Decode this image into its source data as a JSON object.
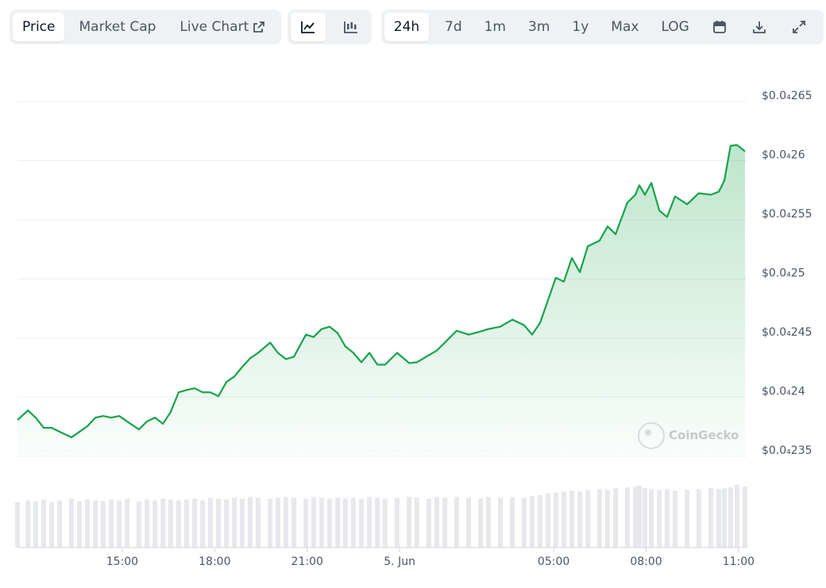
{
  "toolbar": {
    "views": [
      "Price",
      "Market Cap",
      "Live Chart"
    ],
    "ranges": [
      "24h",
      "7d",
      "1m",
      "3m",
      "1y",
      "Max",
      "LOG"
    ]
  },
  "chart_data": {
    "type": "line",
    "x": [
      11.6,
      11.94,
      12.19,
      12.45,
      12.71,
      12.97,
      13.35,
      13.61,
      13.87,
      14.13,
      14.38,
      14.64,
      14.9,
      15.16,
      15.54,
      15.8,
      16.06,
      16.32,
      16.57,
      16.83,
      17.09,
      17.35,
      17.61,
      17.86,
      18.12,
      18.38,
      18.64,
      18.89,
      19.15,
      19.41,
      19.8,
      20.05,
      20.31,
      20.57,
      20.96,
      21.21,
      21.47,
      21.73,
      21.99,
      22.24,
      22.5,
      22.76,
      23.02,
      23.28,
      23.53,
      23.92,
      24.31,
      24.56,
      24.95,
      25.21,
      25.47,
      25.85,
      26.24,
      26.63,
      26.88,
      27.27,
      27.66,
      28.04,
      28.3,
      28.56,
      28.82,
      29.07,
      29.33,
      29.59,
      29.85,
      30.11,
      30.49,
      30.75,
      31.01,
      31.39,
      31.65,
      31.78,
      31.96,
      32.17,
      32.43,
      32.68,
      32.94,
      33.33,
      33.71,
      34.1,
      34.36,
      34.54,
      34.74,
      34.95,
      35.21
    ],
    "series": [
      {
        "color": "#16a34a",
        "values": [
          2.3807e-05,
          2.3888e-05,
          2.3827e-05,
          2.3741e-05,
          2.3741e-05,
          2.3707e-05,
          2.366e-05,
          2.3707e-05,
          2.3754e-05,
          2.3827e-05,
          2.3841e-05,
          2.3827e-05,
          2.3841e-05,
          2.3794e-05,
          2.3727e-05,
          2.3794e-05,
          2.3827e-05,
          2.3774e-05,
          2.3874e-05,
          2.4041e-05,
          2.4061e-05,
          2.4075e-05,
          2.4041e-05,
          2.4041e-05,
          2.4008e-05,
          2.4128e-05,
          2.4175e-05,
          2.4255e-05,
          2.4329e-05,
          2.4375e-05,
          2.4462e-05,
          2.4375e-05,
          2.4322e-05,
          2.4342e-05,
          2.4529e-05,
          2.4509e-05,
          2.4576e-05,
          2.4596e-05,
          2.4542e-05,
          2.4429e-05,
          2.4375e-05,
          2.4295e-05,
          2.4375e-05,
          2.4275e-05,
          2.4275e-05,
          2.4375e-05,
          2.4288e-05,
          2.4295e-05,
          2.4355e-05,
          2.4395e-05,
          2.4462e-05,
          2.4562e-05,
          2.4529e-05,
          2.4556e-05,
          2.4576e-05,
          2.4596e-05,
          2.4656e-05,
          2.4609e-05,
          2.4529e-05,
          2.4629e-05,
          2.4823e-05,
          2.501e-05,
          2.4977e-05,
          2.5177e-05,
          2.5057e-05,
          2.5277e-05,
          2.5324e-05,
          2.5444e-05,
          2.5378e-05,
          2.5645e-05,
          2.5712e-05,
          2.5792e-05,
          2.5712e-05,
          2.5812e-05,
          2.5578e-05,
          2.5524e-05,
          2.5698e-05,
          2.5631e-05,
          2.5725e-05,
          2.5712e-05,
          2.5738e-05,
          2.5832e-05,
          2.6126e-05,
          2.6133e-05,
          2.6079e-05
        ]
      }
    ],
    "volume": {
      "color": "#e6e8ec",
      "values": [
        52,
        54,
        53,
        55,
        52,
        54,
        56,
        53,
        55,
        54,
        53,
        55,
        54,
        56,
        53,
        55,
        54,
        56,
        55,
        54,
        55,
        56,
        54,
        57,
        56,
        55,
        57,
        56,
        58,
        57,
        56,
        57,
        58,
        57,
        56,
        58,
        57,
        56,
        57,
        56,
        57,
        56,
        58,
        57,
        56,
        57,
        58,
        57,
        56,
        58,
        57,
        58,
        57,
        56,
        58,
        57,
        58,
        57,
        59,
        60,
        62,
        63,
        64,
        65,
        64,
        66,
        67,
        66,
        68,
        69,
        70,
        71,
        68,
        67,
        66,
        67,
        65,
        66,
        67,
        68,
        67,
        68,
        69,
        72,
        70
      ]
    },
    "vlim": [
      0,
      100
    ],
    "xlim": [
      11.6,
      35.26
    ],
    "xticks": [
      {
        "value": 15,
        "label": "15:00"
      },
      {
        "value": 18,
        "label": "18:00"
      },
      {
        "value": 21,
        "label": "21:00"
      },
      {
        "value": 24,
        "label": "5. Jun"
      },
      {
        "value": 29,
        "label": "05:00"
      },
      {
        "value": 32,
        "label": "08:00"
      },
      {
        "value": 35,
        "label": "11:00"
      }
    ],
    "ylim": [
      2.35e-05,
      2.65e-05
    ],
    "yticks": [
      {
        "value": 2.65e-05,
        "label": "$0.0₄265"
      },
      {
        "value": 2.6e-05,
        "label": "$0.0₄26"
      },
      {
        "value": 2.55e-05,
        "label": "$0.0₄255"
      },
      {
        "value": 2.5e-05,
        "label": "$0.0₄25"
      },
      {
        "value": 2.45e-05,
        "label": "$0.0₄245"
      },
      {
        "value": 2.4e-05,
        "label": "$0.0₄24"
      },
      {
        "value": 2.35e-05,
        "label": "$0.0₄235"
      }
    ],
    "grid": true,
    "watermark": "CoinGecko"
  }
}
